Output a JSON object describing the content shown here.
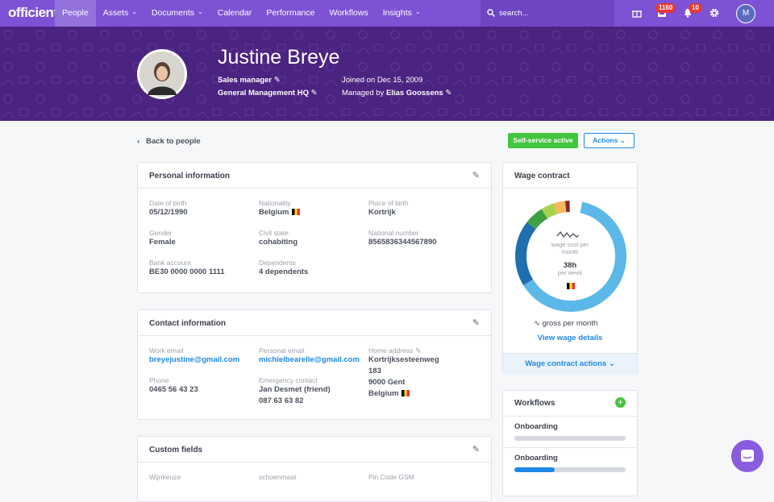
{
  "nav": {
    "logo": "officient",
    "items": [
      "People",
      "Assets",
      "Documents",
      "Calendar",
      "Performance",
      "Workflows",
      "Insights"
    ],
    "search": "search...",
    "badges": [
      1160,
      10
    ],
    "avatar": "M"
  },
  "profile": {
    "name": "Justine Breye",
    "role": "Sales manager",
    "department": "General Management HQ",
    "joined": "Joined on Dec 15, 2009",
    "manager_prefix": "Managed by",
    "manager": "Elias Goossens"
  },
  "back": "Back to people",
  "buttons": {
    "self_service": "Self-service active",
    "actions": "Actions"
  },
  "personal": {
    "title": "Personal information",
    "fields": [
      {
        "label": "Date of birth",
        "value": "05/12/1990"
      },
      {
        "label": "Nationality",
        "value": "Belgium"
      },
      {
        "label": "Place of birth",
        "value": "Kortrijk"
      },
      {
        "label": "Gender",
        "value": "Female"
      },
      {
        "label": "Civil state",
        "value": "cohabiting"
      },
      {
        "label": "National number",
        "value": "8565836344567890"
      },
      {
        "label": "Bank account",
        "value": "BE30 0000 0000 1111"
      },
      {
        "label": "Dependents",
        "value": "4 dependents"
      }
    ]
  },
  "contact": {
    "title": "Contact information",
    "fields": [
      {
        "label": "Work email",
        "value": "breyejustine@gmail.com"
      },
      {
        "label": "Personal email",
        "value": "michielbearelle@gmail.com"
      },
      {
        "label": "Home address",
        "lines": [
          "Kortrijksesteenweg",
          "183",
          "9000 Gent",
          "Belgium"
        ]
      },
      {
        "label": "Phone",
        "value": "0465 56 43 23"
      },
      {
        "label": "Emergency contact",
        "lines": [
          "Jan Desmet (friend)",
          "087 63 63 82"
        ]
      }
    ]
  },
  "custom": {
    "title": "Custom fields",
    "labels": [
      "Wijnkeuze",
      "schoenmaat",
      "Pin Code GSM"
    ]
  },
  "wage": {
    "title": "Wage contract",
    "cost_label": "wage cost per month",
    "hours": "38h",
    "hours_label": "per week",
    "gross": "gross per month",
    "link": "View wage details",
    "actions": "Wage contract actions"
  },
  "workflows": {
    "title": "Workflows",
    "items": [
      "Onboarding",
      "Onboarding"
    ]
  }
}
